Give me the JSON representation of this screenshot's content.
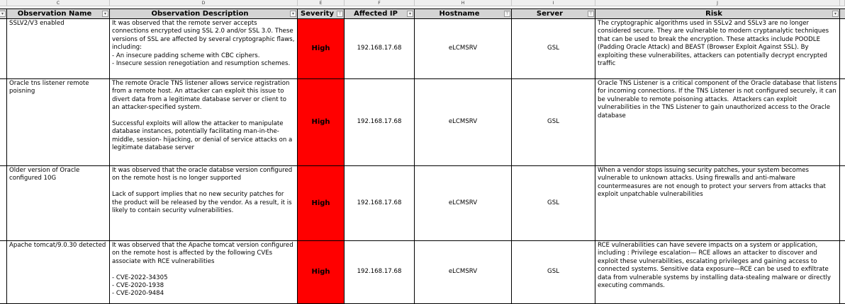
{
  "column_letters": [
    "C",
    "D",
    "E",
    "F",
    "H",
    "I",
    "J"
  ],
  "headers": [
    "Observation Name",
    "Observation Description",
    "Severity",
    "Affected IP",
    "Hostname",
    "Server",
    "Risk"
  ],
  "colors": {
    "severity_high": "#ff0000",
    "header_bg": "#d4d4d4"
  },
  "rows": [
    {
      "name": "SSLV2/V3 enabled",
      "description": "It was observed that the remote server accepts connections encrypted using SSL 2.0 and/or SSL 3.0. These versions of SSL are affected by several cryptographic flaws, including:\n- An insecure padding scheme with CBC ciphers.\n- Insecure session renegotiation and resumption schemes.",
      "severity": "High",
      "ip": "192.168.17.68",
      "hostname": "eLCMSRV",
      "server": "GSL",
      "risk": "The cryptographic algorithms used in SSLv2 and SSLv3 are no longer considered secure. They are vulnerable to modern cryptanalytic techniques that can be used to break the encryption. These attacks include POODLE (Padding Oracle Attack) and BEAST (Browser Exploit Against SSL). By exploiting these vulnerabilites, attackers can potentially decrypt encrypted traffic"
    },
    {
      "name": "Oracle tns listener remote poisning",
      "description": "The remote Oracle TNS listener allows service registration from a remote host. An attacker can exploit this issue to divert data from a legitimate database server or client to an attacker-specified system.\n\nSuccessful exploits will allow the attacker to manipulate database instances, potentially facilitating man-in-the-middle, session- hijacking, or denial of service attacks on a legitimate database server",
      "severity": "High",
      "ip": "192.168.17.68",
      "hostname": "eLCMSRV",
      "server": "GSL",
      "risk": "Oracle TNS Listener is a critical component of the Oracle database that listens for incoming connections. If the TNS Listener is not configured securely, it can be vulnerable to remote poisoning attacks.  Attackers can exploit vulnerabilities in the TNS Listener to gain unauthorized access to the Oracle database"
    },
    {
      "name": "Older version of Oracle configured 10G",
      "description": "It was observed that the oracle databse version configured on the remote host is no longer supported\n\nLack of support implies that no new security patches for the product will be released by the vendor. As a result, it is likely to contain security vulnerabilities.",
      "severity": "High",
      "ip": "192.168.17.68",
      "hostname": "eLCMSRV",
      "server": "GSL",
      "risk": "When a vendor stops issuing security patches, your system becomes vulnerable to unknown attacks. Using firewalls and anti-malware countermeasures are not enough to protect your servers from attacks that exploit unpatchable vulnerabilities"
    },
    {
      "name": "Apache tomcat/9.0.30 detected",
      "description": "It was observed that the Apache tomcat version configured on the remote host is affected by the following CVEs associate with RCE vulnerabilities\n\n- CVE-2022-34305\n- CVE-2020-1938\n- CVE-2020-9484",
      "severity": "High",
      "ip": "192.168.17.68",
      "hostname": "eLCMSRV",
      "server": "GSL",
      "risk": "RCE vulnerabilities can have severe impacts on a system or application, including : Privilege escalation— RCE allows an attacker to discover and exploit these vulnerabilities, escalating privileges and gaining access to connected systems. Sensitive data exposure—RCE can be used to exfiltrate data from vulnerable systems by installing data-stealing malware or directly executing commands."
    }
  ]
}
